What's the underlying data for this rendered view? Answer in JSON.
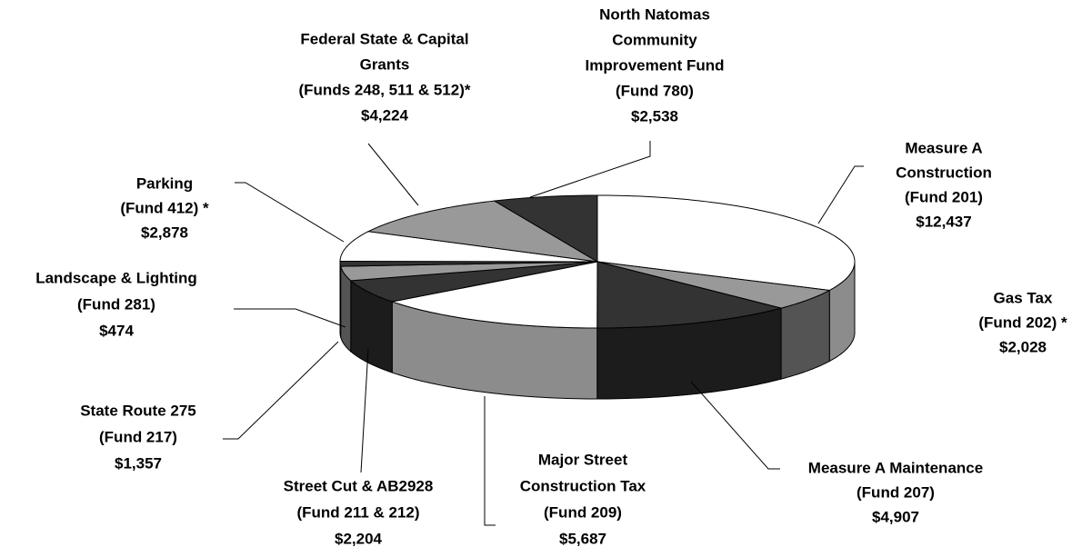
{
  "chart_data": {
    "type": "pie3d",
    "categories": [
      [
        "Measure A",
        "Construction",
        "(Fund 201)"
      ],
      [
        "Gas Tax",
        "(Fund 202) *"
      ],
      [
        "Measure A Maintenance",
        "(Fund 207)"
      ],
      [
        "Major Street",
        "Construction Tax",
        "(Fund 209)"
      ],
      [
        "Street Cut & AB2928",
        "(Fund 211 & 212)"
      ],
      [
        "State Route 275",
        "(Fund 217)"
      ],
      [
        "Landscape & Lighting",
        "(Fund 281)"
      ],
      [
        "Parking",
        "(Fund 412) *"
      ],
      [
        "Federal State & Capital",
        "Grants",
        "(Funds 248, 511 & 512)*"
      ],
      [
        "North Natomas",
        "Community",
        "Improvement Fund",
        "(Fund 780)"
      ]
    ],
    "values": [
      12437,
      2028,
      4907,
      5687,
      2204,
      1357,
      474,
      2878,
      4224,
      2538
    ],
    "value_labels": [
      "$12,437",
      "$2,028",
      "$4,907",
      "$5,687",
      "$2,204",
      "$1,357",
      "$474",
      "$2,878",
      "$4,224",
      "$2,538"
    ],
    "colors": [
      "#ffffff",
      "#999999",
      "#333333",
      "#ffffff",
      "#333333",
      "#999999",
      "#333333",
      "#ffffff",
      "#999999",
      "#333333"
    ]
  }
}
